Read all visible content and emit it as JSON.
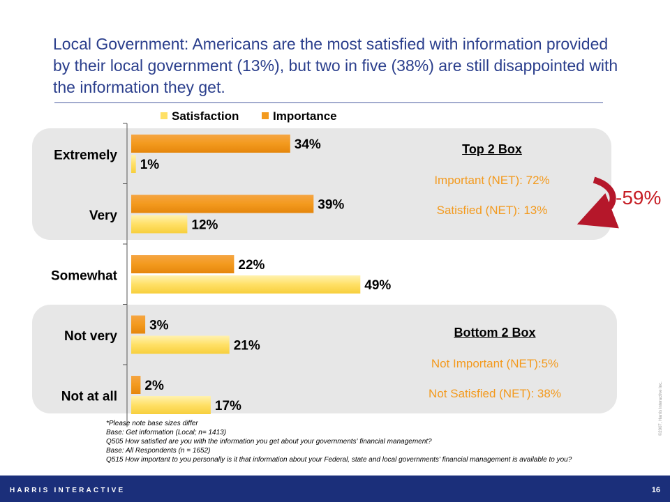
{
  "slide": {
    "title": "Local Government: Americans are the most satisfied with information provided by their local government (13%), but two in five (38%) are still disappointed with the information they get.",
    "page_number": "16",
    "brand": "HARRIS INTERACTIVE",
    "copyright": "©2007, Harris Interactive Inc."
  },
  "top_box": {
    "heading": "Top 2 Box",
    "important": "Important (NET): 72%",
    "satisfied": "Satisfied (NET): 13%"
  },
  "bottom_box": {
    "heading": "Bottom 2 Box",
    "not_important": "Not Important (NET):5%",
    "not_satisfied": "Not Satisfied (NET): 38%"
  },
  "delta_label": "-59%",
  "footnotes": [
    "*Please note base sizes differ",
    "Base: Get information (Local; n= 1413)",
    "Q505 How satisfied are you with the information you get about your governments' financial management?",
    "Base: All Respondents (n = 1652)",
    "Q515 How important to you personally is it that information about your Federal, state and local governments' financial management is available to you?"
  ],
  "chart_data": {
    "type": "bar",
    "orientation": "horizontal",
    "categories": [
      "Extremely",
      "Very",
      "Somewhat",
      "Not very",
      "Not at all"
    ],
    "series": [
      {
        "name": "Satisfaction",
        "values": [
          1,
          12,
          49,
          21,
          17
        ],
        "color": "#ffe066"
      },
      {
        "name": "Importance",
        "values": [
          34,
          39,
          22,
          3,
          2
        ],
        "color": "#f39a1e"
      }
    ],
    "legend_order": [
      "Satisfaction",
      "Importance"
    ],
    "legend_position": "top",
    "value_suffix": "%",
    "grid": false
  }
}
